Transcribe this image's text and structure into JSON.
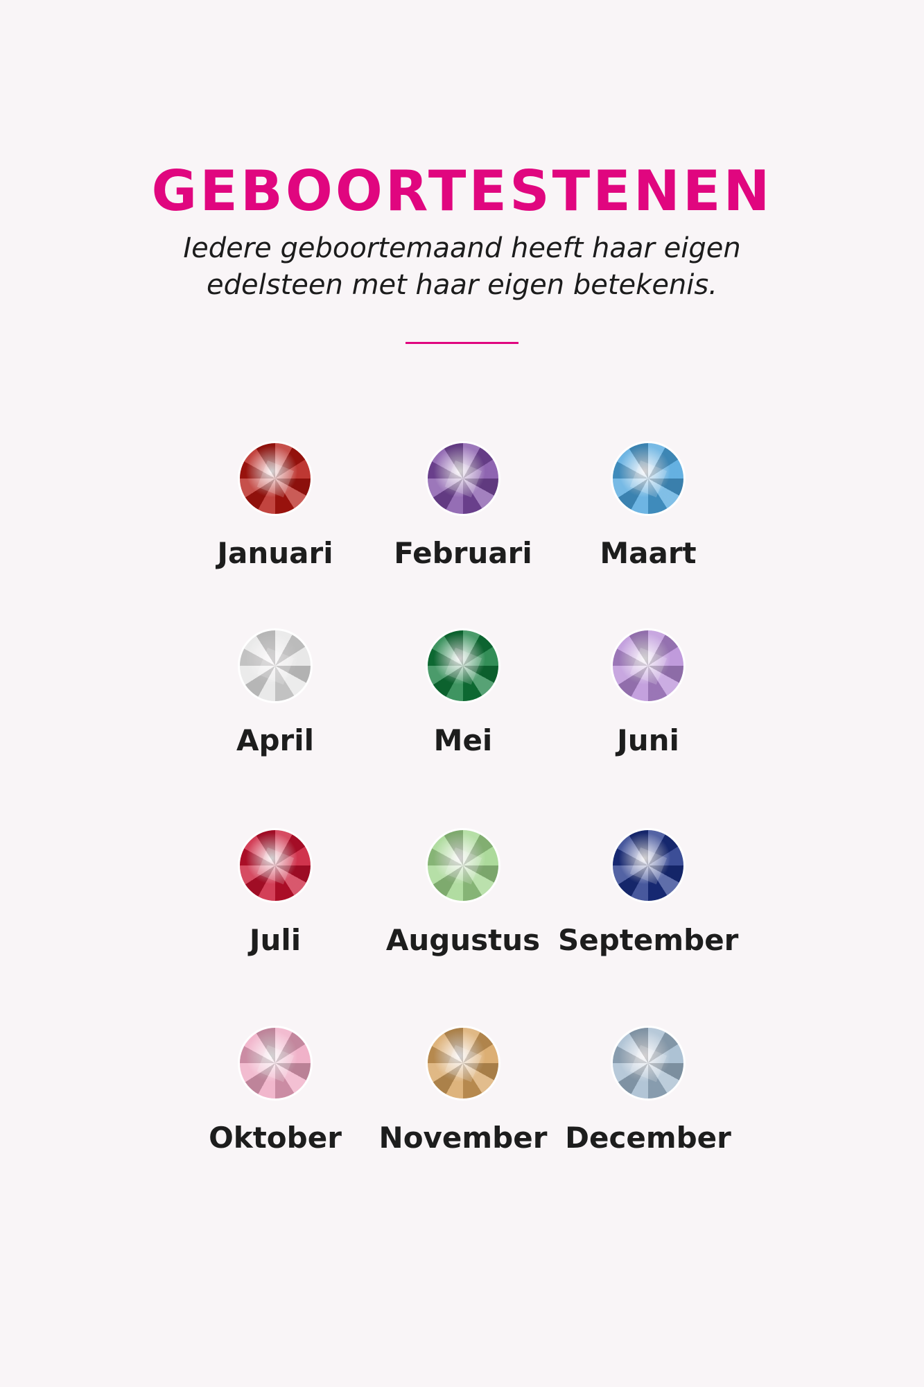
{
  "header": {
    "title": "GEBOORTESTENEN",
    "subtitle_line1": "Iedere geboortemaand heeft haar eigen",
    "subtitle_line2": "edelsteen met haar eigen betekenis."
  },
  "colors": {
    "accent": "#e0067f",
    "background": "#f9f5f7",
    "text": "#1d1d1d"
  },
  "months": [
    {
      "label": "Januari",
      "gem_color": "#b3150f"
    },
    {
      "label": "Februari",
      "gem_color": "#7b4aa3"
    },
    {
      "label": "Maart",
      "gem_color": "#4aa3dc"
    },
    {
      "label": "April",
      "gem_color": "#e4e4e4"
    },
    {
      "label": "Mei",
      "gem_color": "#0f7a3a"
    },
    {
      "label": "Juni",
      "gem_color": "#b58ad6"
    },
    {
      "label": "Juli",
      "gem_color": "#c8102e"
    },
    {
      "label": "Augustus",
      "gem_color": "#9ed48a"
    },
    {
      "label": "September",
      "gem_color": "#1a2f85"
    },
    {
      "label": "Oktober",
      "gem_color": "#eea5c0"
    },
    {
      "label": "November",
      "gem_color": "#d6a15c"
    },
    {
      "label": "December",
      "gem_color": "#9fb7cc"
    }
  ]
}
